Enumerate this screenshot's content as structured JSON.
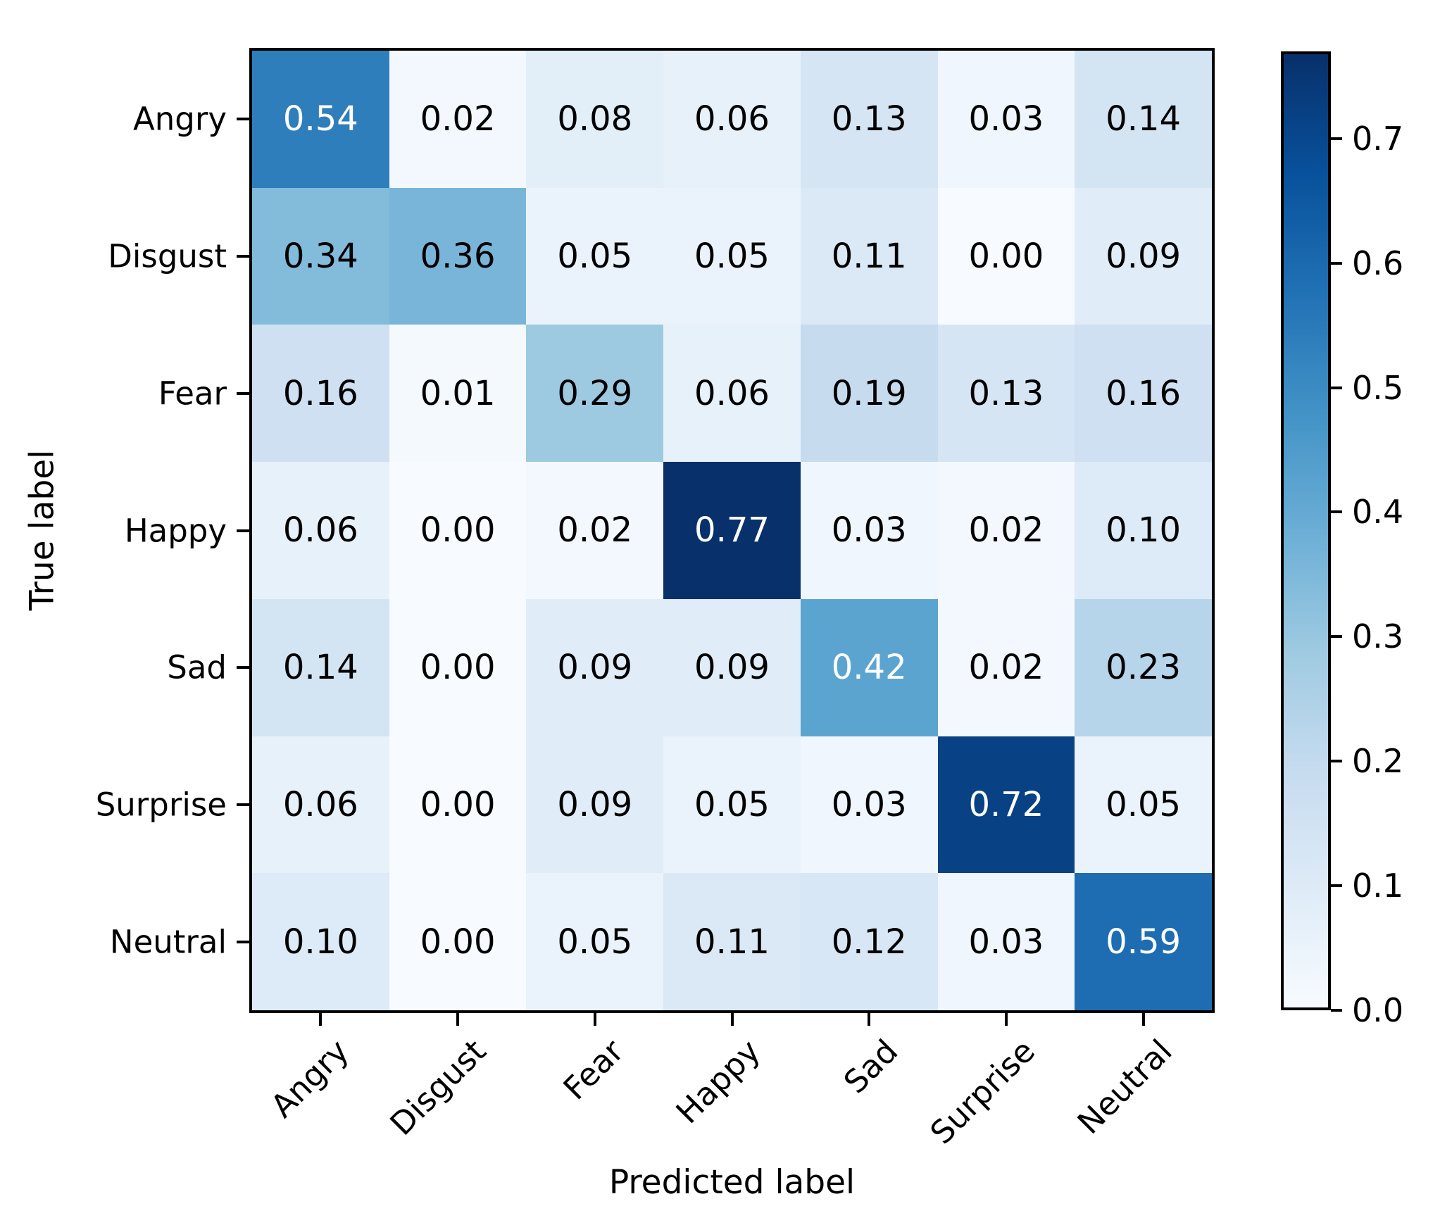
{
  "chart_data": {
    "type": "heatmap",
    "title": "",
    "xlabel": "Predicted label",
    "ylabel": "True label",
    "categories": [
      "Angry",
      "Disgust",
      "Fear",
      "Happy",
      "Sad",
      "Surprise",
      "Neutral"
    ],
    "x_tick_labels": [
      "Angry",
      "Disgust",
      "Fear",
      "Happy",
      "Sad",
      "Surprise",
      "Neutral"
    ],
    "y_tick_labels": [
      "Angry",
      "Disgust",
      "Fear",
      "Happy",
      "Sad",
      "Surprise",
      "Neutral"
    ],
    "matrix": [
      [
        0.54,
        0.02,
        0.08,
        0.06,
        0.13,
        0.03,
        0.14
      ],
      [
        0.34,
        0.36,
        0.05,
        0.05,
        0.11,
        0.0,
        0.09
      ],
      [
        0.16,
        0.01,
        0.29,
        0.06,
        0.19,
        0.13,
        0.16
      ],
      [
        0.06,
        0.0,
        0.02,
        0.77,
        0.03,
        0.02,
        0.1
      ],
      [
        0.14,
        0.0,
        0.09,
        0.09,
        0.42,
        0.02,
        0.23
      ],
      [
        0.06,
        0.0,
        0.09,
        0.05,
        0.03,
        0.72,
        0.05
      ],
      [
        0.1,
        0.0,
        0.05,
        0.11,
        0.12,
        0.03,
        0.59
      ]
    ],
    "value_decimals": 2,
    "vmin": 0.0,
    "vmax": 0.77,
    "colormap_name": "Blues",
    "colormap_stops": [
      "#f7fbff",
      "#deebf7",
      "#c6dbef",
      "#9ecae1",
      "#6baed6",
      "#4292c6",
      "#2171b5",
      "#08519c",
      "#08306b"
    ],
    "cell_text_color_dark": "#000000",
    "cell_text_color_light": "#ffffff",
    "axis_color": "#000000",
    "background_color": "#ffffff",
    "grid": false,
    "x_tick_rotation_deg": 45,
    "legend_position": "colorbar-right",
    "colorbar": {
      "tick_labels": [
        "0.0",
        "0.1",
        "0.2",
        "0.3",
        "0.4",
        "0.5",
        "0.6",
        "0.7"
      ]
    }
  }
}
